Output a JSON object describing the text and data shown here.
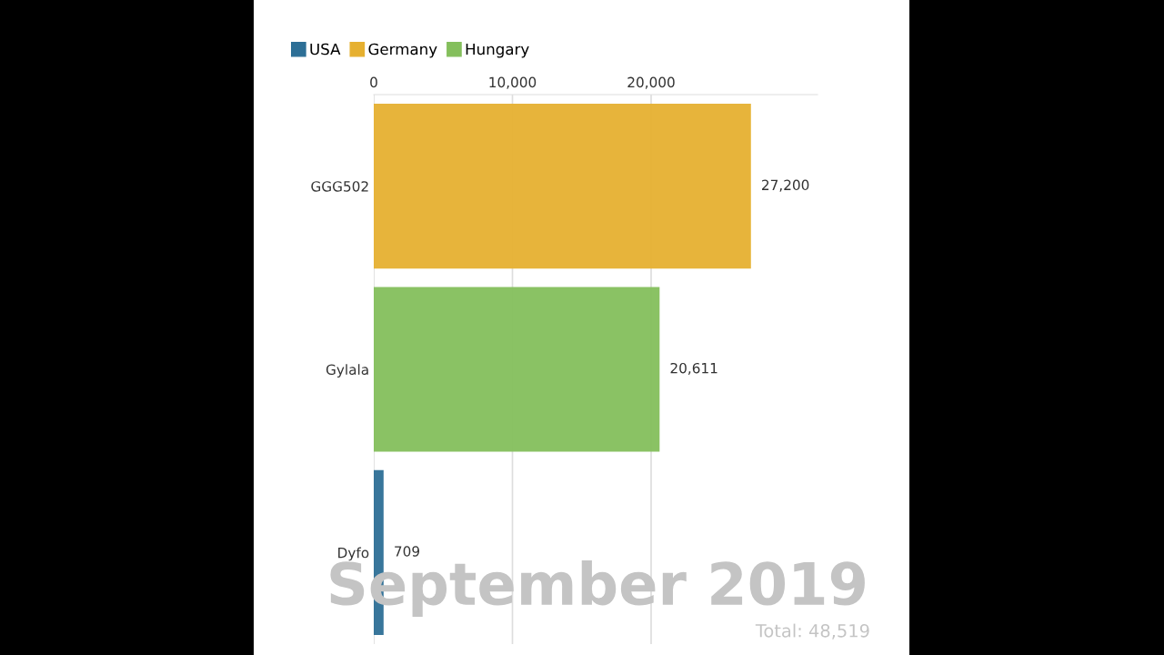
{
  "chart_data": {
    "type": "bar",
    "orientation": "horizontal",
    "stacked": true,
    "categories": [
      "GGG502",
      "Gylala",
      "Dyfo"
    ],
    "series": [
      {
        "name": "USA",
        "color": "#2d6f96",
        "values": [
          null,
          null,
          709
        ],
        "value_labels": [
          null,
          null,
          "709"
        ]
      },
      {
        "name": "Germany",
        "color": "#e6b030",
        "values": [
          27200,
          null,
          null
        ],
        "value_labels": [
          "27,200",
          null,
          null
        ]
      },
      {
        "name": "Hungary",
        "color": "#84bf5c",
        "values": [
          null,
          20611,
          null
        ],
        "value_labels": [
          null,
          "20,611",
          null
        ]
      }
    ],
    "xticks": [
      {
        "value": 0,
        "label": "0"
      },
      {
        "value": 10000,
        "label": "10,000"
      },
      {
        "value": 20000,
        "label": "20,000"
      }
    ],
    "xlim": [
      0,
      32000
    ],
    "grid": "x",
    "legend": "top left",
    "annotations": [
      "September 2019",
      "Total: 48,519"
    ]
  }
}
